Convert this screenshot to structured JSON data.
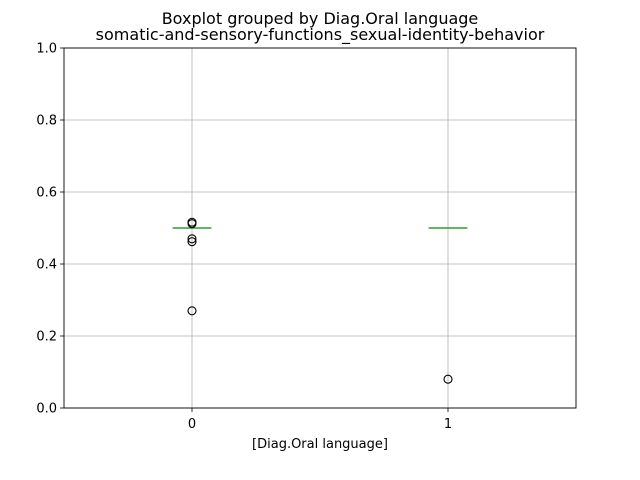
{
  "chart_data": {
    "type": "box",
    "title": "Boxplot grouped by Diag.Oral language",
    "subtitle": "somatic-and-sensory-functions_sexual-identity-behavior",
    "xlabel": "[Diag.Oral language]",
    "ylabel": "",
    "categories": [
      "0",
      "1"
    ],
    "ylim": [
      0.0,
      1.0
    ],
    "yticks": [
      "0.0",
      "0.2",
      "0.4",
      "0.6",
      "0.8",
      "1.0"
    ],
    "grid": true,
    "boxes": [
      {
        "category": "0",
        "q1": 0.5,
        "median": 0.5,
        "q3": 0.5,
        "whisker_low": 0.5,
        "whisker_high": 0.5,
        "outliers": [
          0.516,
          0.512,
          0.47,
          0.462,
          0.27
        ]
      },
      {
        "category": "1",
        "q1": 0.5,
        "median": 0.5,
        "q3": 0.5,
        "whisker_low": 0.5,
        "whisker_high": 0.5,
        "outliers": [
          0.08
        ]
      }
    ],
    "colors": {
      "box": "#1f77b4",
      "median": "#2ca02c",
      "grid": "#b0b0b0",
      "axes": "#000000"
    }
  }
}
